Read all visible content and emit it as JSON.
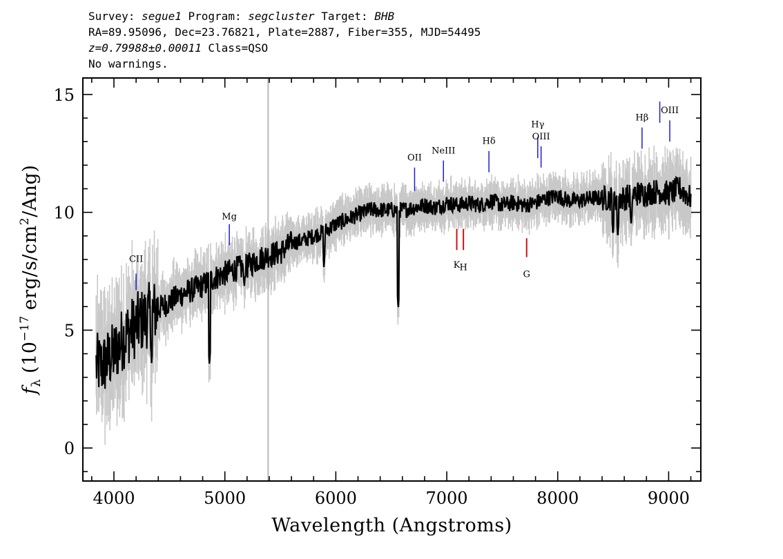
{
  "header": {
    "line1": {
      "survey_label": "Survey:",
      "survey": "segue1",
      "program_label": "Program:",
      "program": "segcluster",
      "target_label": "Target:",
      "target": "BHB"
    },
    "line2": "RA=89.95096, Dec=23.76821, Plate=2887, Fiber=355, MJD=54495",
    "line3": {
      "z": "z=0.79988±0.00011",
      "class": "Class=QSO"
    },
    "line4": "No warnings."
  },
  "chart_data": {
    "type": "line",
    "xlabel": "Wavelength (Angstroms)",
    "ylabel_prefix": "f",
    "ylabel_sub": "λ",
    "ylabel_units_pre": "(10",
    "ylabel_exp": "−17",
    "ylabel_units_mid": "erg/s/cm",
    "ylabel_exp2": "2",
    "ylabel_units_post": "/Ang)",
    "xlim": [
      3720,
      9290
    ],
    "ylim": [
      -1.4,
      15.7
    ],
    "x_ticks": [
      4000,
      5000,
      6000,
      7000,
      8000,
      9000
    ],
    "x_tick_labels": [
      "4000",
      "5000",
      "6000",
      "7000",
      "8000",
      "9000"
    ],
    "y_ticks": [
      0,
      5,
      10,
      15
    ],
    "y_tick_labels": [
      "0",
      "5",
      "10",
      "15"
    ],
    "vertical_marker_x": 5390,
    "colors": {
      "flux": "#000000",
      "noise": "#c8c8c8",
      "emission": "#1a1ad0",
      "absorption": "#cc1111",
      "marker": "#b8b8b8"
    },
    "flux_control_points": [
      [
        3840,
        3.5
      ],
      [
        3900,
        3.5
      ],
      [
        4000,
        4.0
      ],
      [
        4100,
        4.8
      ],
      [
        4200,
        5.2
      ],
      [
        4300,
        5.6
      ],
      [
        4400,
        5.9
      ],
      [
        4500,
        6.2
      ],
      [
        4600,
        6.5
      ],
      [
        4700,
        6.7
      ],
      [
        4800,
        6.9
      ],
      [
        4900,
        7.2
      ],
      [
        5000,
        7.4
      ],
      [
        5100,
        7.6
      ],
      [
        5200,
        7.7
      ],
      [
        5300,
        8.0
      ],
      [
        5400,
        8.2
      ],
      [
        5500,
        8.3
      ],
      [
        5600,
        8.7
      ],
      [
        5700,
        8.8
      ],
      [
        5800,
        9.0
      ],
      [
        5900,
        9.2
      ],
      [
        6000,
        9.5
      ],
      [
        6100,
        9.7
      ],
      [
        6200,
        9.9
      ],
      [
        6300,
        10.1
      ],
      [
        6400,
        10.1
      ],
      [
        6500,
        10.1
      ],
      [
        6600,
        10.1
      ],
      [
        6700,
        10.2
      ],
      [
        6800,
        10.3
      ],
      [
        6900,
        10.2
      ],
      [
        7000,
        10.4
      ],
      [
        7100,
        10.3
      ],
      [
        7200,
        10.4
      ],
      [
        7300,
        10.3
      ],
      [
        7400,
        10.5
      ],
      [
        7500,
        10.3
      ],
      [
        7600,
        10.4
      ],
      [
        7700,
        10.3
      ],
      [
        7800,
        10.4
      ],
      [
        7900,
        10.6
      ],
      [
        8000,
        10.7
      ],
      [
        8100,
        10.5
      ],
      [
        8200,
        10.5
      ],
      [
        8300,
        10.6
      ],
      [
        8400,
        10.6
      ],
      [
        8500,
        10.6
      ],
      [
        8600,
        10.6
      ],
      [
        8700,
        10.8
      ],
      [
        8800,
        10.8
      ],
      [
        8900,
        10.9
      ],
      [
        9000,
        10.8
      ],
      [
        9100,
        11.0
      ],
      [
        9200,
        10.6
      ]
    ],
    "absorption_features": [
      [
        4102,
        4.2
      ],
      [
        4340,
        3.6
      ],
      [
        4861,
        3.5
      ],
      [
        5175,
        6.8
      ],
      [
        5893,
        7.6
      ],
      [
        6563,
        5.9
      ],
      [
        8498,
        9.0
      ],
      [
        8542,
        8.9
      ],
      [
        8662,
        9.4
      ]
    ],
    "emission_lines": [
      {
        "label": "CII",
        "wavelength": 4200,
        "label_y": 7.9,
        "y_top": 7.4,
        "y_bottom": 6.7
      },
      {
        "label": "Mg",
        "wavelength": 5040,
        "label_y": 9.7,
        "y_top": 9.5,
        "y_bottom": 8.6
      },
      {
        "label": "OII",
        "wavelength": 6710,
        "label_y": 12.2,
        "y_top": 11.9,
        "y_bottom": 10.9
      },
      {
        "label": "NeIII",
        "wavelength": 6970,
        "label_y": 12.5,
        "y_top": 12.2,
        "y_bottom": 11.3
      },
      {
        "label": "Hδ",
        "wavelength": 7380,
        "label_y": 12.9,
        "y_top": 12.6,
        "y_bottom": 11.7
      },
      {
        "label": "Hγ",
        "wavelength": 7820,
        "label_y": 13.6,
        "y_top": 13.2,
        "y_bottom": 12.3
      },
      {
        "label": "OIII",
        "wavelength": 7850,
        "label_y": 13.1,
        "y_top": 12.8,
        "y_bottom": 11.9
      },
      {
        "label": "Hβ",
        "wavelength": 8760,
        "label_y": 13.9,
        "y_top": 13.6,
        "y_bottom": 12.7
      },
      {
        "label": "OIII",
        "wavelength": 9010,
        "label_y": 14.2,
        "y_top": 13.9,
        "y_bottom": 13.0
      }
    ],
    "emission_bars_extra": [
      {
        "wavelength": 8920,
        "y_top": 14.7,
        "y_bottom": 13.8
      }
    ],
    "absorption_lines": [
      {
        "label": "K",
        "wavelength": 7090,
        "label_y": 8.0,
        "y_top": 9.3,
        "y_bottom": 8.4
      },
      {
        "label": "H",
        "wavelength": 7150,
        "label_y": 7.9,
        "y_top": 9.3,
        "y_bottom": 8.4
      },
      {
        "label": "G",
        "wavelength": 7720,
        "label_y": 7.6,
        "y_top": 8.9,
        "y_bottom": 8.1
      }
    ]
  }
}
